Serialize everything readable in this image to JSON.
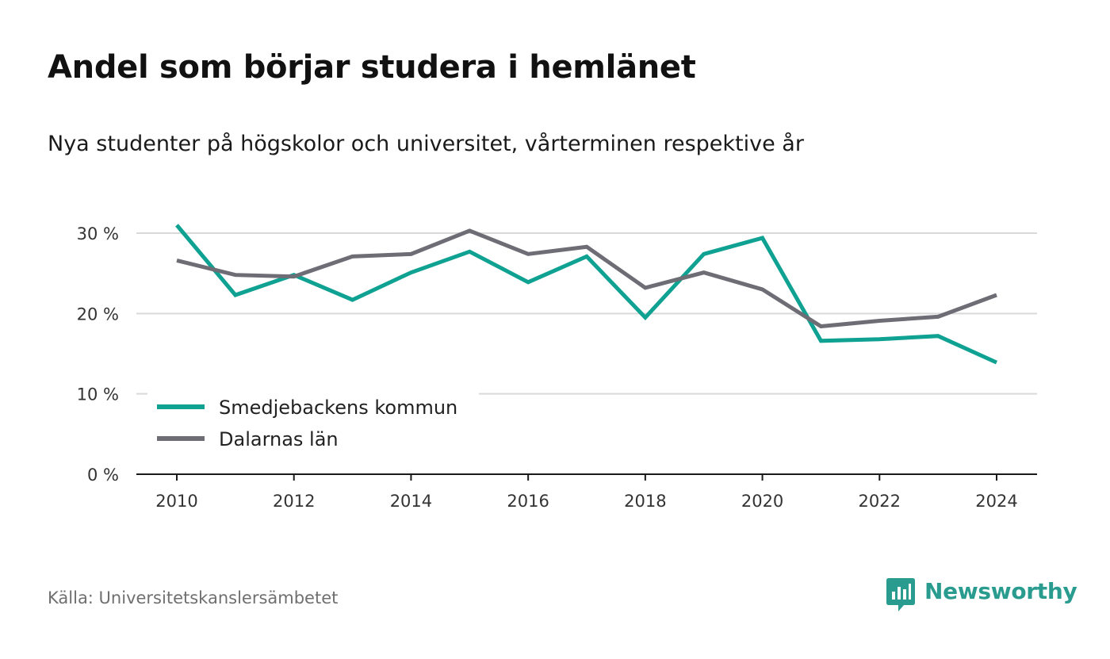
{
  "header": {
    "title": "Andel som börjar studera i hemlänet",
    "subtitle": "Nya studenter på högskolor och universitet, vårterminen respektive år"
  },
  "chart_data": {
    "type": "line",
    "x": [
      2010,
      2011,
      2012,
      2013,
      2014,
      2015,
      2016,
      2017,
      2018,
      2019,
      2020,
      2021,
      2022,
      2023,
      2024
    ],
    "xticks": [
      2010,
      2012,
      2014,
      2016,
      2018,
      2020,
      2022,
      2024
    ],
    "yticks": [
      0,
      10,
      20,
      30
    ],
    "ylim": [
      0,
      30
    ],
    "y_tick_suffix": " %",
    "grid": true,
    "legend_position": "bottom-left",
    "series": [
      {
        "name": "Smedjebackens kommun",
        "color": "#0fa192",
        "values": [
          31.0,
          22.3,
          24.8,
          21.7,
          25.1,
          27.7,
          23.9,
          27.1,
          19.5,
          27.4,
          29.4,
          16.6,
          16.8,
          17.2,
          13.9
        ]
      },
      {
        "name": "Dalarnas län",
        "color": "#6e6d75",
        "values": [
          26.6,
          24.8,
          24.6,
          27.1,
          27.4,
          30.3,
          27.4,
          28.3,
          23.2,
          25.1,
          23.0,
          18.4,
          19.1,
          19.6,
          22.3
        ]
      }
    ]
  },
  "footer": {
    "source": "Källa: Universitetskanslersämbetet",
    "brand": "Newsworthy",
    "brand_icon": "newsworthy-logo-icon",
    "brand_color": "#2a9c8f"
  }
}
